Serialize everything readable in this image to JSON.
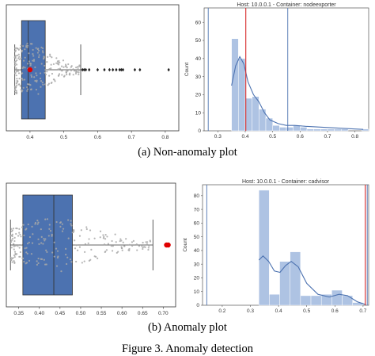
{
  "captions": {
    "top": "(a) Non-anomaly plot",
    "bottom": "(b) Anomaly plot",
    "figure": "Figure 3.   Anomaly detection"
  },
  "colors": {
    "box_fill": "#4c72b0",
    "hist_fill": "#aec3e3",
    "kde_line": "#4c72b0",
    "vline_blue": "#4c72b0",
    "vline_red": "#d62728",
    "anomaly": "#e00000",
    "swarm": "#a8a8a8"
  },
  "chart_data": [
    {
      "id": "box_a",
      "type": "box",
      "xlim": [
        0.33,
        0.84
      ],
      "xticks": [
        0.4,
        0.5,
        0.6,
        0.7,
        0.8
      ],
      "xtick_labels": [
        "0.4",
        "0.5",
        "0.6",
        "0.7",
        "0.8"
      ],
      "box": {
        "q1": 0.375,
        "median": 0.395,
        "q3": 0.445,
        "whisker_low": 0.355,
        "whisker_high": 0.55
      },
      "outliers": [
        0.555,
        0.56,
        0.565,
        0.575,
        0.6,
        0.62,
        0.635,
        0.645,
        0.655,
        0.665,
        0.67,
        0.675,
        0.71,
        0.725,
        0.81
      ],
      "anomaly": [
        0.4
      ]
    },
    {
      "id": "hist_a",
      "type": "bar",
      "title": "Host: 10.0.0.1 - Container: nodeexporter",
      "ylabel": "Count",
      "xlim": [
        0.25,
        0.85
      ],
      "ylim": [
        0,
        68
      ],
      "xticks": [
        0.3,
        0.4,
        0.5,
        0.6,
        0.7,
        0.8
      ],
      "xtick_labels": [
        "0.3",
        "0.4",
        "0.5",
        "0.6",
        "0.7",
        "0.8"
      ],
      "yticks": [
        0,
        10,
        20,
        30,
        40,
        50,
        60
      ],
      "ytick_labels": [
        "0",
        "10",
        "20",
        "30",
        "40",
        "50",
        "60"
      ],
      "bin_width": 0.025,
      "bin_starts": [
        0.35,
        0.375,
        0.4,
        0.425,
        0.45,
        0.475,
        0.5,
        0.525,
        0.55,
        0.575,
        0.6,
        0.625,
        0.65,
        0.675,
        0.7,
        0.725,
        0.75,
        0.775,
        0.8,
        0.825
      ],
      "counts": [
        51,
        40,
        18,
        19,
        12,
        7,
        3,
        2,
        2,
        3,
        2,
        1,
        1,
        1,
        1,
        1,
        1,
        0,
        0,
        1
      ],
      "kde": [
        [
          0.35,
          25
        ],
        [
          0.365,
          36
        ],
        [
          0.38,
          41
        ],
        [
          0.395,
          37
        ],
        [
          0.41,
          27
        ],
        [
          0.43,
          20
        ],
        [
          0.45,
          16
        ],
        [
          0.47,
          10
        ],
        [
          0.49,
          6
        ],
        [
          0.52,
          4
        ],
        [
          0.55,
          3
        ],
        [
          0.58,
          3
        ],
        [
          0.62,
          2.5
        ],
        [
          0.68,
          2
        ],
        [
          0.74,
          1.5
        ],
        [
          0.8,
          1
        ],
        [
          0.83,
          0.8
        ]
      ],
      "vlines_blue": [
        0.265,
        0.555
      ],
      "vlines_red": [
        0.402
      ]
    },
    {
      "id": "box_b",
      "type": "box",
      "xlim": [
        0.32,
        0.73
      ],
      "xticks": [
        0.35,
        0.4,
        0.45,
        0.5,
        0.55,
        0.6,
        0.65,
        0.7
      ],
      "xtick_labels": [
        "0.35",
        "0.40",
        "0.45",
        "0.50",
        "0.55",
        "0.60",
        "0.65",
        "0.70"
      ],
      "box": {
        "q1": 0.36,
        "median": 0.435,
        "q3": 0.48,
        "whisker_low": 0.33,
        "whisker_high": 0.675
      },
      "outliers": [
        0.705
      ],
      "anomaly": [
        0.708,
        0.712
      ]
    },
    {
      "id": "hist_b",
      "type": "bar",
      "title": "Host: 10.0.0.1 - Container: cadvisor",
      "ylabel": "Count",
      "xlim": [
        0.13,
        0.72
      ],
      "ylim": [
        0,
        88
      ],
      "xticks": [
        0.2,
        0.3,
        0.4,
        0.5,
        0.6,
        0.7
      ],
      "xtick_labels": [
        "0.2",
        "0.3",
        "0.4",
        "0.5",
        "0.6",
        "0.7"
      ],
      "yticks": [
        0,
        10,
        20,
        30,
        40,
        50,
        60,
        70,
        80
      ],
      "ytick_labels": [
        "0",
        "10",
        "20",
        "30",
        "40",
        "50",
        "60",
        "70",
        "80"
      ],
      "bin_width": 0.037,
      "bin_starts": [
        0.33,
        0.367,
        0.404,
        0.441,
        0.478,
        0.515,
        0.552,
        0.589,
        0.626,
        0.663
      ],
      "counts": [
        84,
        8,
        32,
        39,
        7,
        7,
        8,
        11,
        7,
        2
      ],
      "kde": [
        [
          0.33,
          33
        ],
        [
          0.345,
          36
        ],
        [
          0.365,
          32
        ],
        [
          0.385,
          25
        ],
        [
          0.405,
          24
        ],
        [
          0.425,
          29
        ],
        [
          0.445,
          32
        ],
        [
          0.47,
          28
        ],
        [
          0.5,
          16
        ],
        [
          0.54,
          8
        ],
        [
          0.58,
          6
        ],
        [
          0.615,
          8
        ],
        [
          0.645,
          7
        ],
        [
          0.68,
          2.5
        ],
        [
          0.71,
          0.5
        ]
      ],
      "vlines_blue": [
        0.145,
        0.715
      ],
      "vlines_red": [
        0.708
      ]
    }
  ]
}
